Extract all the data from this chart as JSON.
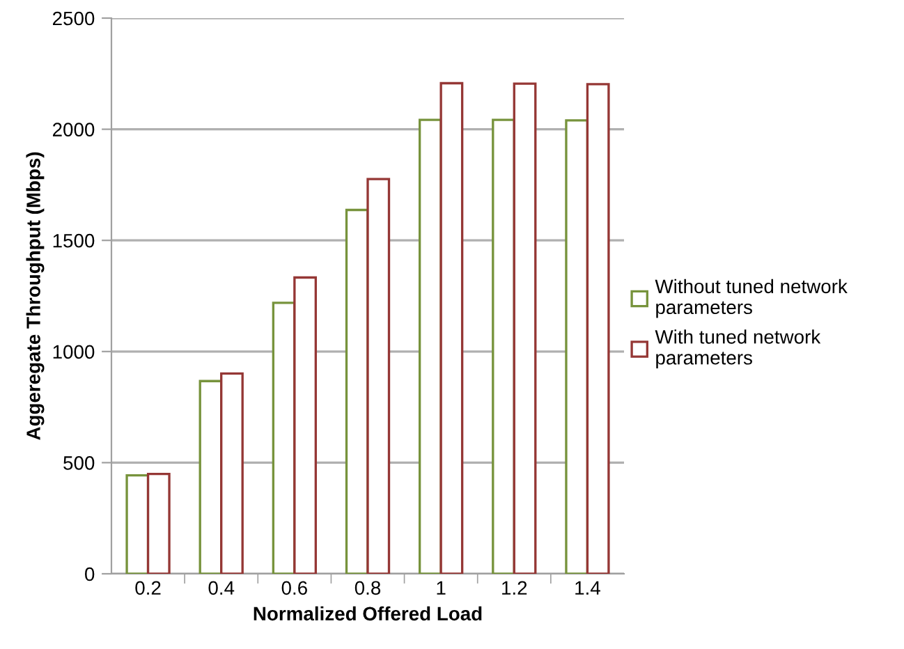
{
  "chart_data": {
    "type": "bar",
    "xlabel": "Normalized Offered Load",
    "ylabel": "Aggeregate Throughput (Mbps)",
    "categories": [
      "0.2",
      "0.4",
      "0.6",
      "0.8",
      "1",
      "1.2",
      "1.4"
    ],
    "series": [
      {
        "name": "Without tuned network parameters",
        "color": "#77933c",
        "values": [
          443,
          867,
          1219,
          1637,
          2042,
          2042,
          2040
        ]
      },
      {
        "name": "With tuned network parameters",
        "color": "#953735",
        "values": [
          449,
          901,
          1333,
          1776,
          2207,
          2205,
          2203
        ]
      }
    ],
    "ylim": [
      0,
      2500
    ],
    "yticks": [
      0,
      500,
      1000,
      1500,
      2000,
      2500
    ],
    "grid": "y",
    "legend": "right"
  }
}
